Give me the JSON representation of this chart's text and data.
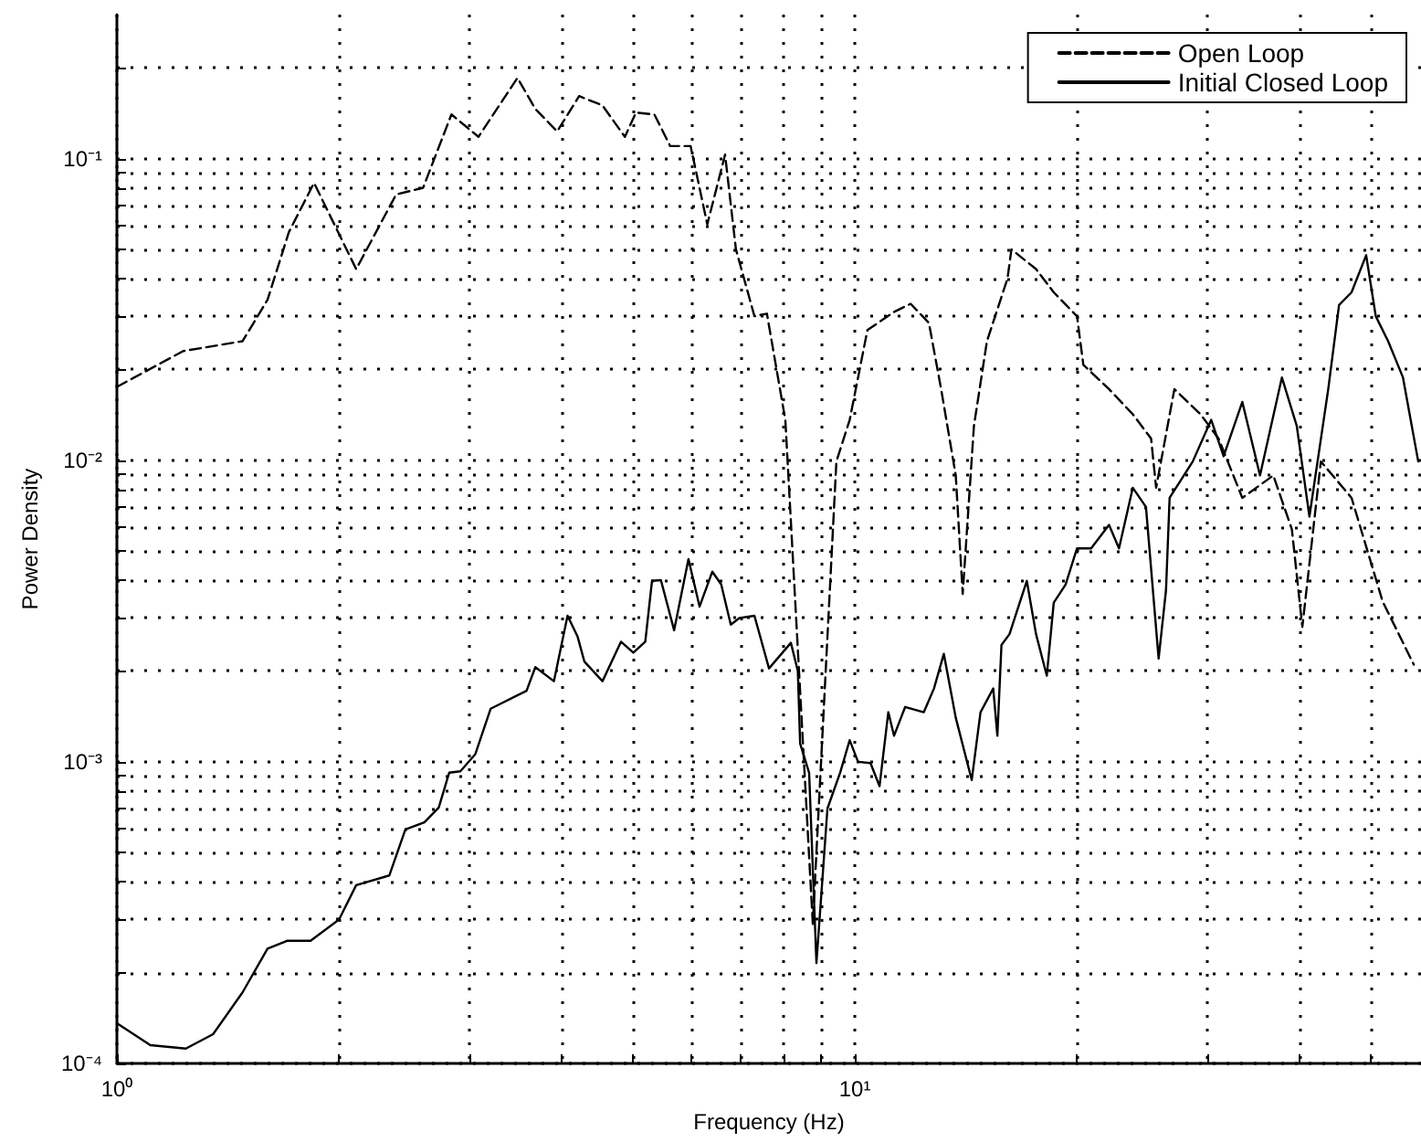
{
  "chart_data": {
    "type": "line",
    "xlabel": "Frequency (Hz)",
    "ylabel": "Power Density",
    "log": "xy",
    "grid": true,
    "legend": "top right",
    "marker": "none",
    "xlim": [
      1,
      58.5
    ],
    "ylim": [
      0.0001,
      0.3
    ],
    "xticks": [
      {
        "value": 1,
        "label": "10⁰"
      },
      {
        "value": 2,
        "label": null
      },
      {
        "value": 3,
        "label": null
      },
      {
        "value": 4,
        "label": null
      },
      {
        "value": 5,
        "label": null
      },
      {
        "value": 6,
        "label": null
      },
      {
        "value": 7,
        "label": null
      },
      {
        "value": 8,
        "label": null
      },
      {
        "value": 9,
        "label": null
      },
      {
        "value": 10,
        "label": "10¹"
      },
      {
        "value": 20,
        "label": null
      },
      {
        "value": 30,
        "label": null
      },
      {
        "value": 40,
        "label": null
      },
      {
        "value": 50,
        "label": null
      }
    ],
    "yticks": [
      {
        "value": 0.0001,
        "label": "10⁻⁴"
      },
      {
        "value": 0.0002,
        "label": null
      },
      {
        "value": 0.0003,
        "label": null
      },
      {
        "value": 0.0004,
        "label": null
      },
      {
        "value": 0.0005,
        "label": null
      },
      {
        "value": 0.0006,
        "label": null
      },
      {
        "value": 0.0007,
        "label": null
      },
      {
        "value": 0.0008,
        "label": null
      },
      {
        "value": 0.0009,
        "label": null
      },
      {
        "value": 0.001,
        "label": "10⁻³"
      },
      {
        "value": 0.002,
        "label": null
      },
      {
        "value": 0.003,
        "label": null
      },
      {
        "value": 0.004,
        "label": null
      },
      {
        "value": 0.005,
        "label": null
      },
      {
        "value": 0.006,
        "label": null
      },
      {
        "value": 0.007,
        "label": null
      },
      {
        "value": 0.008,
        "label": null
      },
      {
        "value": 0.009,
        "label": null
      },
      {
        "value": 0.01,
        "label": "10⁻²"
      },
      {
        "value": 0.02,
        "label": null
      },
      {
        "value": 0.03,
        "label": null
      },
      {
        "value": 0.04,
        "label": null
      },
      {
        "value": 0.05,
        "label": null
      },
      {
        "value": 0.06,
        "label": null
      },
      {
        "value": 0.07,
        "label": null
      },
      {
        "value": 0.08,
        "label": null
      },
      {
        "value": 0.09,
        "label": null
      },
      {
        "value": 0.1,
        "label": "10⁻¹"
      },
      {
        "value": 0.2,
        "label": null
      }
    ],
    "series": [
      {
        "name": "Open Loop",
        "color": "#000000",
        "line_style": "dashed",
        "x": [
          1.0,
          1.23,
          1.48,
          1.6,
          1.71,
          1.85,
          2.11,
          2.39,
          2.6,
          2.84,
          3.09,
          3.49,
          3.69,
          3.95,
          4.23,
          4.55,
          4.88,
          5.05,
          5.35,
          5.62,
          5.99,
          6.31,
          6.67,
          6.9,
          7.31,
          7.6,
          8.05,
          8.77,
          9.44,
          9.84,
          10.4,
          11.3,
          11.9,
          12.6,
          13.1,
          13.7,
          14.0,
          14.5,
          15.1,
          16.1,
          16.3,
          17.6,
          18.6,
          20.0,
          20.4,
          22.1,
          23.8,
          25.2,
          25.6,
          27.1,
          29.4,
          31.1,
          33.5,
          36.9,
          39.1,
          40.4,
          42.8,
          47.1,
          51.9,
          57.2
        ],
        "values": [
          0.0175,
          0.023,
          0.0248,
          0.034,
          0.057,
          0.083,
          0.043,
          0.076,
          0.08,
          0.14,
          0.118,
          0.185,
          0.146,
          0.123,
          0.161,
          0.15,
          0.118,
          0.142,
          0.14,
          0.11,
          0.11,
          0.0605,
          0.103,
          0.05,
          0.03,
          0.0306,
          0.0136,
          0.00029,
          0.0099,
          0.0136,
          0.027,
          0.031,
          0.033,
          0.0285,
          0.017,
          0.0089,
          0.0036,
          0.013,
          0.0248,
          0.04,
          0.05,
          0.043,
          0.036,
          0.03,
          0.0207,
          0.0172,
          0.0142,
          0.0118,
          0.0081,
          0.0172,
          0.0142,
          0.0118,
          0.0075,
          0.0089,
          0.0059,
          0.0028,
          0.0099,
          0.0075,
          0.0034,
          0.0021
        ]
      },
      {
        "name": "Initial Closed Loop",
        "color": "#000000",
        "line_style": "solid",
        "x": [
          1.0,
          1.11,
          1.24,
          1.35,
          1.48,
          1.6,
          1.7,
          1.83,
          2.0,
          2.11,
          2.34,
          2.46,
          2.61,
          2.73,
          2.82,
          2.92,
          3.06,
          3.21,
          3.59,
          3.69,
          3.91,
          4.08,
          4.21,
          4.3,
          4.55,
          4.82,
          5.01,
          5.2,
          5.31,
          5.46,
          5.69,
          5.95,
          6.16,
          6.41,
          6.59,
          6.79,
          6.98,
          7.31,
          7.65,
          8.19,
          8.37,
          8.43,
          8.67,
          8.87,
          9.18,
          9.55,
          9.84,
          10.1,
          10.5,
          10.8,
          11.1,
          11.3,
          11.7,
          12.4,
          12.8,
          13.2,
          13.7,
          14.4,
          14.8,
          15.4,
          15.6,
          15.8,
          16.2,
          17.1,
          17.6,
          18.2,
          18.6,
          19.3,
          20.0,
          20.9,
          22.1,
          22.8,
          23.8,
          24.8,
          25.8,
          26.4,
          26.7,
          28.7,
          30.4,
          31.6,
          33.5,
          35.4,
          37.9,
          39.7,
          41.3,
          43.8,
          45.3,
          47.1,
          49.3,
          50.8,
          52.8,
          55.3,
          58.0
        ],
        "values": [
          0.000136,
          0.000115,
          0.000112,
          0.000125,
          0.000172,
          0.00024,
          0.000255,
          0.000255,
          0.0003,
          0.00039,
          0.00042,
          0.000597,
          0.00063,
          0.000705,
          0.00092,
          0.00093,
          0.00106,
          0.0015,
          0.00172,
          0.00206,
          0.00185,
          0.00305,
          0.0026,
          0.00215,
          0.00185,
          0.0025,
          0.0023,
          0.0025,
          0.00398,
          0.004,
          0.00273,
          0.0047,
          0.00327,
          0.00427,
          0.00387,
          0.00285,
          0.003,
          0.00305,
          0.00204,
          0.00248,
          0.002,
          0.00115,
          0.00092,
          0.000215,
          0.0007,
          0.00092,
          0.00118,
          0.001,
          0.00099,
          0.00083,
          0.00146,
          0.00122,
          0.00152,
          0.00146,
          0.00175,
          0.00228,
          0.0014,
          0.00087,
          0.00146,
          0.00175,
          0.00122,
          0.00244,
          0.00265,
          0.00398,
          0.00265,
          0.00193,
          0.00337,
          0.00387,
          0.0051,
          0.0051,
          0.0061,
          0.0051,
          0.0081,
          0.007,
          0.0022,
          0.0037,
          0.0075,
          0.0099,
          0.0136,
          0.0103,
          0.0156,
          0.0089,
          0.0188,
          0.013,
          0.0065,
          0.0172,
          0.0327,
          0.036,
          0.0478,
          0.03,
          0.0248,
          0.0188,
          0.0099
        ]
      }
    ]
  }
}
